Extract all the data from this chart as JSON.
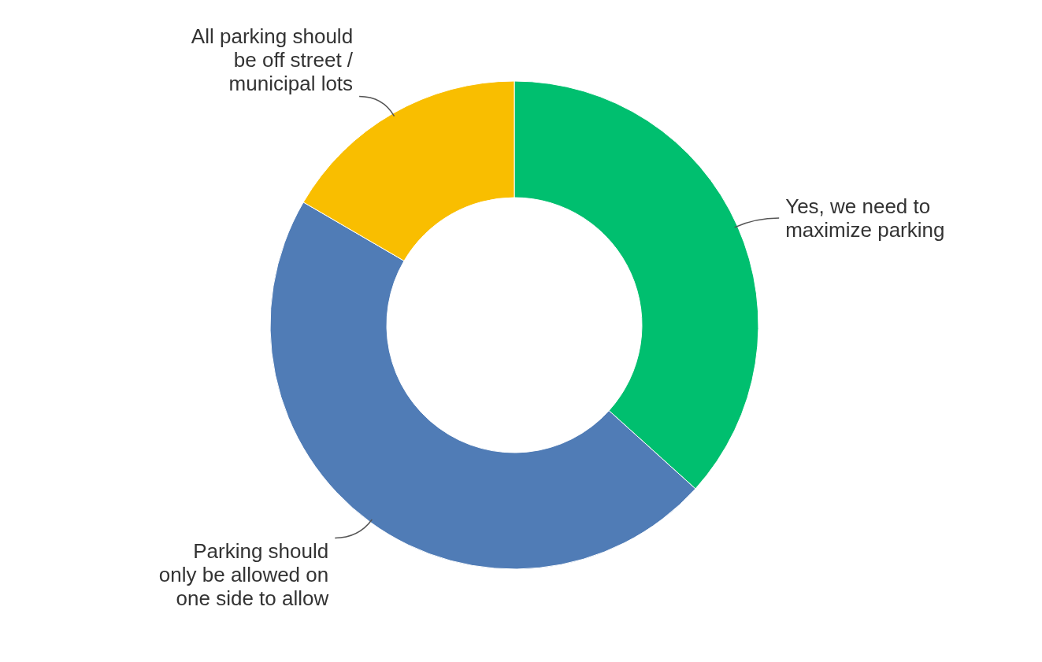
{
  "chart_data": {
    "type": "donut",
    "categories": [
      "Yes, we need to maximize parking",
      "Parking should only be allowed on one side to allow",
      "All parking should be off street / municipal lots"
    ],
    "values": [
      36.7,
      46.7,
      16.6
    ],
    "colors": [
      "#00bf6f",
      "#507cb6",
      "#f9be00"
    ],
    "legend": false
  }
}
